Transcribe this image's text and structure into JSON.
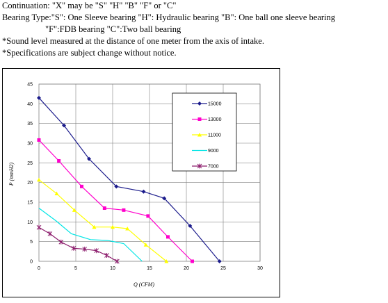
{
  "notes": {
    "line1": "Continuation: \"X\" may  be  \"S\"  \"H\"  \"B\"  \"F\"  or  \"C\"",
    "line2": "Bearing Type:\"S\": One Sleeve bearing     \"H\": Hydraulic   bearing          \"B\": One ball one sleeve bearing",
    "line3": "\"F\":FDB    bearing             \"C\":Two ball bearing",
    "line4": "*Sound level measured at the distance of one meter from the axis of intake.",
    "line5": "*Specifications are subject change without notice."
  },
  "chart_data": {
    "type": "line",
    "title": "",
    "xlabel": "Q (CFM)",
    "ylabel": "P (mmH2)",
    "xlim": [
      0,
      30
    ],
    "ylim": [
      0,
      45
    ],
    "xticks": [
      "0",
      "5",
      "10",
      "15",
      "20",
      "25",
      "30"
    ],
    "yticks": [
      "0",
      "5",
      "10",
      "15",
      "20",
      "25",
      "30",
      "35",
      "40",
      "45"
    ],
    "grid": true,
    "legend_position": "top-right",
    "series": [
      {
        "name": "15000",
        "color": "#1c1c8c",
        "marker": "diamond",
        "x": [
          0,
          3.4,
          6.8,
          10.5,
          14.2,
          17,
          20.5,
          24.5
        ],
        "y": [
          41.5,
          34.5,
          26,
          19,
          17.7,
          16,
          9,
          0
        ]
      },
      {
        "name": "13000",
        "color": "#ff00cc",
        "marker": "square",
        "x": [
          0,
          2.7,
          5.8,
          8.9,
          11.5,
          14.8,
          17.5,
          20.8
        ],
        "y": [
          30.8,
          25.5,
          19,
          13.5,
          13,
          11.5,
          6.2,
          0
        ]
      },
      {
        "name": "11000",
        "color": "#ffff00",
        "marker": "triangle",
        "x": [
          0,
          2.4,
          4.8,
          7.5,
          10,
          12,
          14.5,
          17.3
        ],
        "y": [
          20.7,
          17.2,
          13,
          8.7,
          8.7,
          8.3,
          4.2,
          0
        ]
      },
      {
        "name": "9000",
        "color": "#00e5e5",
        "marker": "none",
        "x": [
          0,
          2.3,
          4.4,
          7,
          9.3,
          11.5,
          14
        ],
        "y": [
          13.5,
          10.3,
          7,
          5.5,
          5.3,
          4.5,
          0
        ]
      },
      {
        "name": "7000",
        "color": "#8b1a6b",
        "marker": "star",
        "x": [
          0,
          1.5,
          3,
          4.7,
          6.2,
          7.8,
          9.2,
          10.6
        ],
        "y": [
          8.6,
          7,
          4.9,
          3.3,
          3.1,
          2.7,
          1.5,
          0
        ]
      }
    ]
  }
}
